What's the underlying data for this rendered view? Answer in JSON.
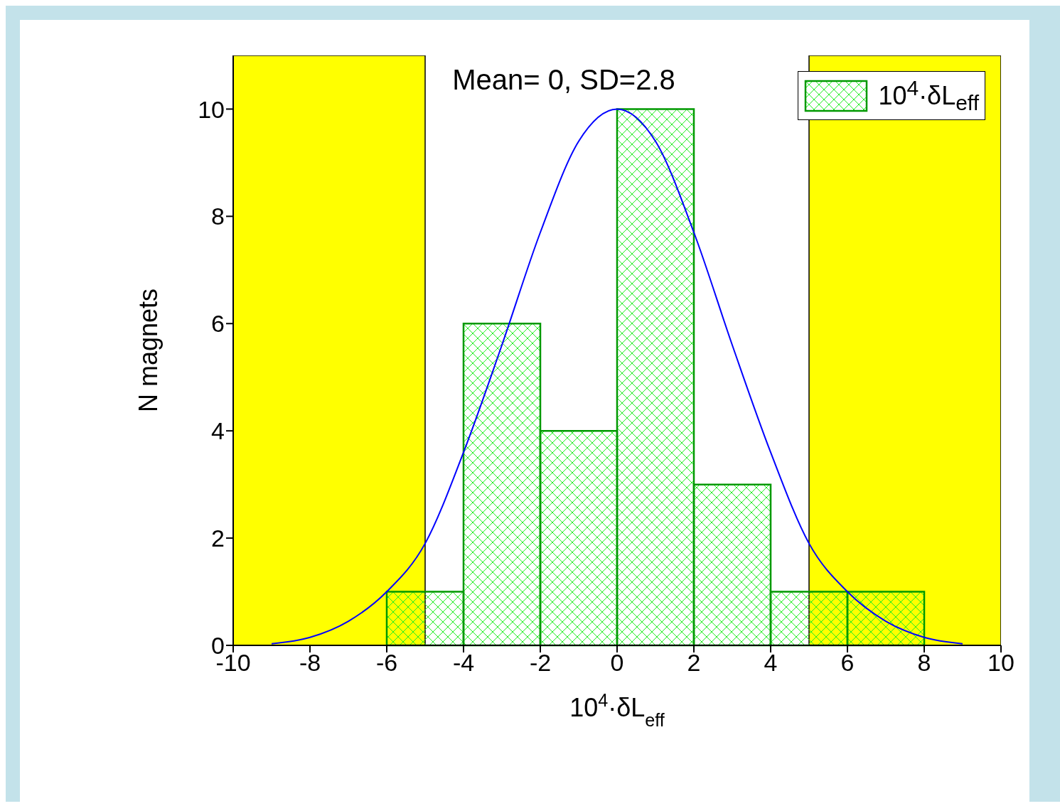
{
  "chart_data": {
    "type": "histogram",
    "xlabel": "10$^{4}$·δL$_{eff}$",
    "ylabel": "N magnets",
    "annotations": [
      "Mean= 0, SD=2.8"
    ],
    "bins": [
      -6,
      -4,
      -2,
      0,
      2,
      4,
      6,
      8
    ],
    "series": [
      {
        "name": "10$^{4}$·δL$_{eff}$",
        "color": "#009900",
        "values": [
          1,
          6,
          4,
          10,
          3,
          1,
          1
        ]
      },
      {
        "type": "line",
        "color": "#0000ff",
        "x": [
          -9,
          -8,
          -7,
          -6,
          -5,
          -4,
          -3,
          -2,
          -1,
          0,
          1,
          2,
          3,
          4,
          5,
          6,
          7,
          8,
          9
        ],
        "values": [
          0.03,
          0.15,
          0.45,
          1.0,
          1.9,
          3.6,
          5.6,
          7.7,
          9.4,
          10,
          9.4,
          7.7,
          5.6,
          3.6,
          1.9,
          1.0,
          0.45,
          0.15,
          0.03
        ]
      }
    ],
    "bands": [
      {
        "axis": "x",
        "from": -10,
        "to": -5,
        "color": "#ffff00"
      },
      {
        "axis": "x",
        "from": 5,
        "to": 10,
        "color": "#ffff00"
      }
    ],
    "xlim": [
      -10,
      10
    ],
    "xticks": [
      -10,
      -8,
      -6,
      -4,
      -2,
      0,
      2,
      4,
      6,
      8,
      10
    ],
    "ylim": [
      0,
      11
    ],
    "yticks": [
      0,
      2,
      4,
      6,
      8,
      10
    ],
    "grid": false,
    "legend": "top right"
  }
}
